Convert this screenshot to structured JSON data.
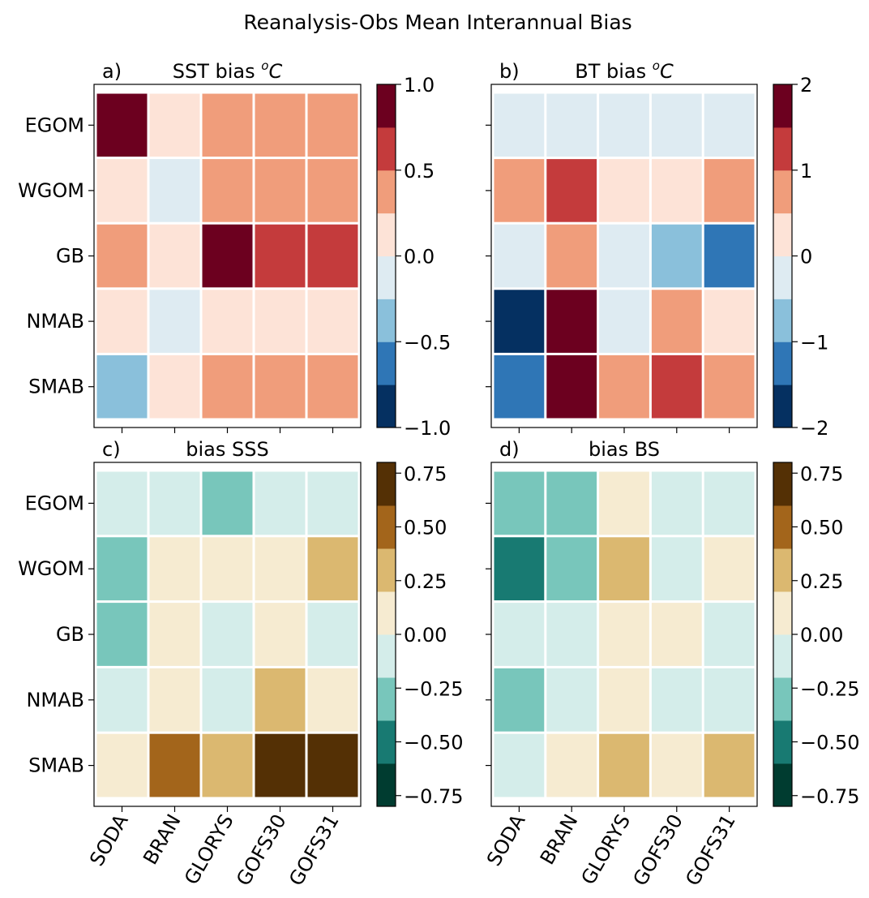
{
  "figure": {
    "suptitle": "Reanalysis-Obs Mean Interannual Bias"
  },
  "chart_data": [
    {
      "type": "heatmap",
      "panel": "a)",
      "title": "SST bias",
      "title_unit": "C",
      "rows": [
        "EGOM",
        "WGOM",
        "GB",
        "NMAB",
        "SMAB"
      ],
      "columns": [
        "SODA",
        "BRAN",
        "GLORYS",
        "GOFS30",
        "GOFS31"
      ],
      "values": [
        [
          0.9,
          0.1,
          0.4,
          0.4,
          0.4
        ],
        [
          0.1,
          -0.1,
          0.4,
          0.4,
          0.4
        ],
        [
          0.4,
          0.1,
          0.9,
          0.6,
          0.6
        ],
        [
          0.1,
          -0.1,
          0.1,
          0.1,
          0.1
        ],
        [
          -0.4,
          0.1,
          0.4,
          0.4,
          0.4
        ]
      ],
      "colorbar": {
        "range": [
          -1.0,
          1.0
        ],
        "levels": 8,
        "ticks": [
          "1.0",
          "0.5",
          "0.0",
          "−0.5",
          "−1.0"
        ]
      },
      "colormap": [
        "#053061",
        "#2f76b6",
        "#8ac0db",
        "#deebf2",
        "#fde3d7",
        "#f09d7b",
        "#c43b3c",
        "#6c001f"
      ],
      "show_row_labels": true,
      "show_col_labels": false
    },
    {
      "type": "heatmap",
      "panel": "b)",
      "title": "BT bias",
      "title_unit": "C",
      "rows": [
        "EGOM",
        "WGOM",
        "GB",
        "NMAB",
        "SMAB"
      ],
      "columns": [
        "SODA",
        "BRAN",
        "GLORYS",
        "GOFS30",
        "GOFS31"
      ],
      "values": [
        [
          -0.25,
          -0.25,
          -0.25,
          -0.25,
          -0.25
        ],
        [
          0.75,
          1.25,
          0.25,
          0.25,
          0.75
        ],
        [
          -0.25,
          0.75,
          -0.25,
          -0.75,
          -1.25
        ],
        [
          -1.75,
          1.75,
          -0.25,
          0.75,
          0.25
        ],
        [
          -1.25,
          1.75,
          0.75,
          1.25,
          0.75
        ]
      ],
      "colorbar": {
        "range": [
          -2,
          2
        ],
        "levels": 8,
        "ticks": [
          "2",
          "1",
          "0",
          "−1",
          "−2"
        ]
      },
      "colormap": [
        "#053061",
        "#2f76b6",
        "#8ac0db",
        "#deebf2",
        "#fde3d7",
        "#f09d7b",
        "#c43b3c",
        "#6c001f"
      ],
      "show_row_labels": false,
      "show_col_labels": false
    },
    {
      "type": "heatmap",
      "panel": "c)",
      "title": "bias SSS",
      "rows": [
        "EGOM",
        "WGOM",
        "GB",
        "NMAB",
        "SMAB"
      ],
      "columns": [
        "SODA",
        "BRAN",
        "GLORYS",
        "GOFS30",
        "GOFS31"
      ],
      "values": [
        [
          -0.1,
          -0.1,
          -0.3,
          -0.1,
          -0.1
        ],
        [
          -0.3,
          0.1,
          0.1,
          0.1,
          0.3
        ],
        [
          -0.3,
          0.1,
          -0.1,
          0.1,
          -0.1
        ],
        [
          -0.1,
          0.1,
          -0.1,
          0.3,
          0.1
        ],
        [
          0.1,
          0.5,
          0.3,
          0.7,
          0.7
        ]
      ],
      "colorbar": {
        "range": [
          -0.8,
          0.8
        ],
        "levels": 8,
        "ticks": [
          "0.75",
          "0.50",
          "0.25",
          "0.00",
          "−0.25",
          "−0.50",
          "−0.75"
        ]
      },
      "colormap": [
        "#003c30",
        "#187a72",
        "#78c6bb",
        "#d4edea",
        "#f6ebd1",
        "#dbb870",
        "#a3651b",
        "#543005"
      ],
      "show_row_labels": true,
      "show_col_labels": true
    },
    {
      "type": "heatmap",
      "panel": "d)",
      "title": "bias BS",
      "rows": [
        "EGOM",
        "WGOM",
        "GB",
        "NMAB",
        "SMAB"
      ],
      "columns": [
        "SODA",
        "BRAN",
        "GLORYS",
        "GOFS30",
        "GOFS31"
      ],
      "values": [
        [
          -0.3,
          -0.3,
          0.1,
          -0.1,
          -0.1
        ],
        [
          -0.5,
          -0.3,
          0.3,
          -0.1,
          0.1
        ],
        [
          -0.1,
          -0.1,
          0.1,
          0.1,
          -0.1
        ],
        [
          -0.3,
          -0.1,
          0.1,
          -0.1,
          -0.1
        ],
        [
          -0.1,
          0.1,
          0.3,
          0.1,
          0.3
        ]
      ],
      "colorbar": {
        "range": [
          -0.8,
          0.8
        ],
        "levels": 8,
        "ticks": [
          "0.75",
          "0.50",
          "0.25",
          "0.00",
          "−0.25",
          "−0.50",
          "−0.75"
        ]
      },
      "colormap": [
        "#003c30",
        "#187a72",
        "#78c6bb",
        "#d4edea",
        "#f6ebd1",
        "#dbb870",
        "#a3651b",
        "#543005"
      ],
      "show_row_labels": false,
      "show_col_labels": true
    }
  ]
}
